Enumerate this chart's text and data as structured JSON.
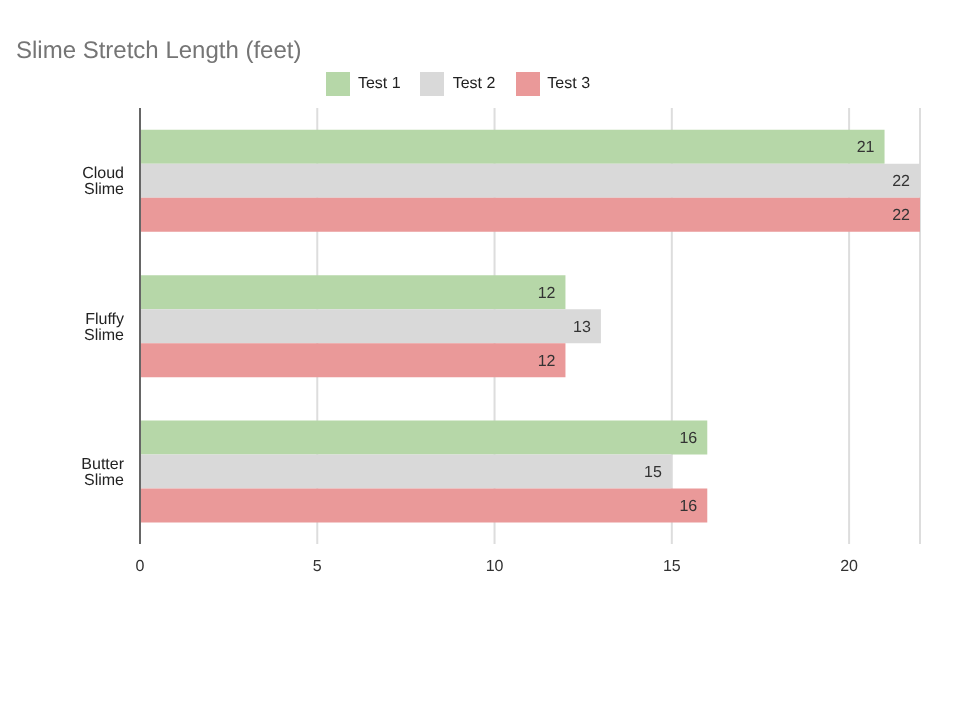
{
  "chart_data": {
    "type": "bar",
    "orientation": "horizontal",
    "title": "Slime Stretch Length (feet)",
    "categories": [
      "Cloud Slime",
      "Fluffy Slime",
      "Butter Slime"
    ],
    "series": [
      {
        "name": "Test 1",
        "color": "#b6d7a8",
        "values": [
          21,
          12,
          16
        ]
      },
      {
        "name": "Test 2",
        "color": "#d9d9d9",
        "values": [
          22,
          13,
          15
        ]
      },
      {
        "name": "Test 3",
        "color": "#ea9999",
        "values": [
          22,
          12,
          16
        ]
      }
    ],
    "xlim": [
      0,
      22
    ],
    "xticks": [
      0,
      5,
      10,
      15,
      20
    ],
    "grid": "x",
    "legend": "top",
    "data_labels": true
  }
}
